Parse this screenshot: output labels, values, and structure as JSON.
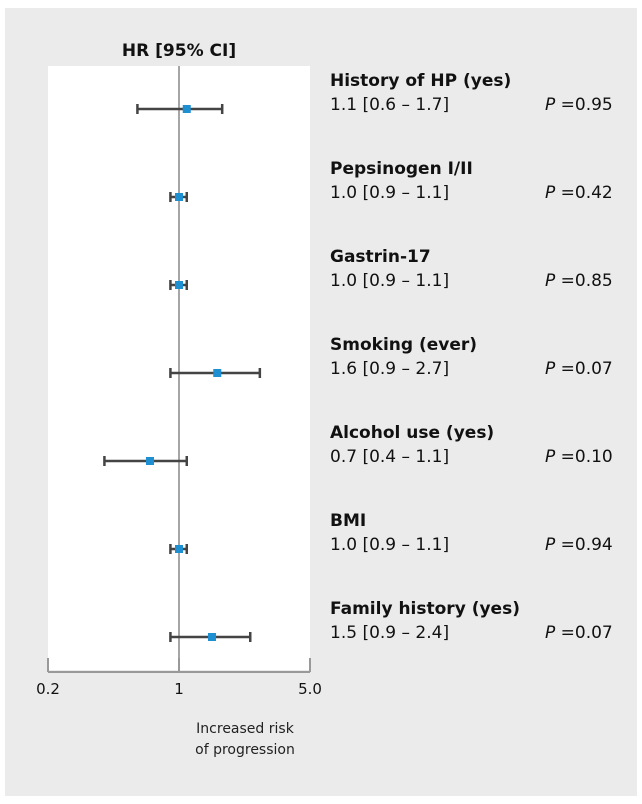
{
  "colors": {
    "panel": "#ebebeb",
    "plot_area": "#ffffff",
    "marker": "#1e8fd0",
    "whisker": "#444444",
    "reference_line": "#a6a6a6",
    "axis": "#999999"
  },
  "chart_data": {
    "type": "forest",
    "title": "HR [95% CI]",
    "x_scale": "log",
    "xlim": [
      0.2,
      5.0
    ],
    "x_ticks": [
      0.2,
      1,
      5.0
    ],
    "x_tick_labels": [
      "0.2",
      "1",
      "5.0"
    ],
    "reference_value": 1,
    "xlabel_lines": [
      "Increased risk",
      "of progression"
    ],
    "p_prefix": "P",
    "rows": [
      {
        "label": "History of HP (yes)",
        "hr": 1.1,
        "lower": 0.6,
        "upper": 1.7,
        "ci_text": "1.1 [0.6 – 1.7]",
        "p_value": "=0.95"
      },
      {
        "label": "Pepsinogen I/II",
        "hr": 1.0,
        "lower": 0.9,
        "upper": 1.1,
        "ci_text": "1.0 [0.9 – 1.1]",
        "p_value": "=0.42"
      },
      {
        "label": "Gastrin-17",
        "hr": 1.0,
        "lower": 0.9,
        "upper": 1.1,
        "ci_text": "1.0 [0.9 – 1.1]",
        "p_value": "=0.85"
      },
      {
        "label": "Smoking (ever)",
        "hr": 1.6,
        "lower": 0.9,
        "upper": 2.7,
        "ci_text": "1.6 [0.9 – 2.7]",
        "p_value": "=0.07"
      },
      {
        "label": "Alcohol use (yes)",
        "hr": 0.7,
        "lower": 0.4,
        "upper": 1.1,
        "ci_text": "0.7 [0.4 – 1.1]",
        "p_value": "=0.10"
      },
      {
        "label": "BMI",
        "hr": 1.0,
        "lower": 0.9,
        "upper": 1.1,
        "ci_text": "1.0 [0.9 – 1.1]",
        "p_value": "=0.94"
      },
      {
        "label": "Family history (yes)",
        "hr": 1.5,
        "lower": 0.9,
        "upper": 2.4,
        "ci_text": "1.5 [0.9 – 2.4]",
        "p_value": "=0.07"
      }
    ]
  }
}
